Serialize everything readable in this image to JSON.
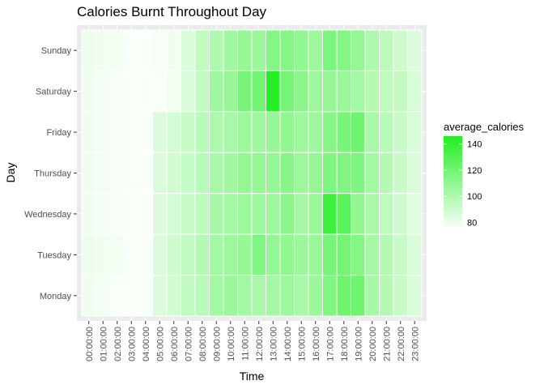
{
  "chart_data": {
    "type": "heatmap",
    "title": "Calories Burnt Throughout Day",
    "xlabel": "Time",
    "ylabel": "Day",
    "x": [
      "00:00:00",
      "01:00:00",
      "02:00:00",
      "03:00:00",
      "04:00:00",
      "05:00:00",
      "06:00:00",
      "07:00:00",
      "08:00:00",
      "09:00:00",
      "10:00:00",
      "11:00:00",
      "12:00:00",
      "13:00:00",
      "14:00:00",
      "15:00:00",
      "16:00:00",
      "17:00:00",
      "18:00:00",
      "19:00:00",
      "20:00:00",
      "21:00:00",
      "22:00:00",
      "23:00:00"
    ],
    "y": [
      "Sunday",
      "Saturday",
      "Friday",
      "Thursday",
      "Wednesday",
      "Tuesday",
      "Monday"
    ],
    "values": [
      [
        80,
        79,
        78,
        76,
        76,
        77,
        79,
        86,
        95,
        100,
        105,
        108,
        107,
        114,
        113,
        110,
        106,
        117,
        114,
        109,
        100,
        96,
        90,
        85
      ],
      [
        79,
        78,
        77,
        76,
        76,
        76,
        78,
        86,
        94,
        106,
        108,
        118,
        120,
        145,
        119,
        112,
        106,
        108,
        107,
        104,
        98,
        95,
        94,
        87
      ],
      [
        79,
        78,
        77,
        76,
        76,
        86,
        88,
        92,
        97,
        101,
        102,
        106,
        106,
        108,
        110,
        106,
        106,
        113,
        118,
        121,
        102,
        97,
        92,
        87
      ],
      [
        79,
        78,
        77,
        76,
        76,
        86,
        89,
        93,
        97,
        102,
        105,
        109,
        109,
        108,
        113,
        106,
        109,
        116,
        115,
        116,
        104,
        98,
        92,
        86
      ],
      [
        79,
        78,
        77,
        76,
        76,
        85,
        88,
        92,
        96,
        103,
        104,
        106,
        106,
        106,
        112,
        103,
        107,
        137,
        128,
        110,
        102,
        95,
        90,
        84
      ],
      [
        80,
        79,
        78,
        76,
        76,
        86,
        90,
        94,
        98,
        104,
        106,
        108,
        115,
        109,
        110,
        107,
        107,
        118,
        119,
        114,
        103,
        98,
        92,
        86
      ],
      [
        79,
        78,
        76,
        76,
        76,
        86,
        89,
        94,
        97,
        104,
        107,
        104,
        102,
        104,
        106,
        102,
        107,
        115,
        121,
        121,
        103,
        98,
        92,
        86
      ]
    ],
    "legend": {
      "title": "average_calories",
      "ticks": [
        80,
        100,
        120,
        140
      ],
      "range": [
        74,
        146
      ],
      "low_color": "#ffffff",
      "high_color": "#22ee22",
      "placement": "right"
    },
    "panel_color": "#ebebeb",
    "grid": true
  }
}
